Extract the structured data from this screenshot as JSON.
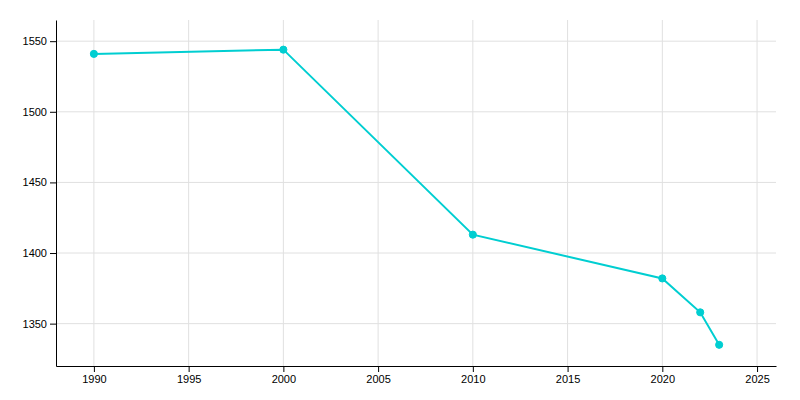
{
  "chart_data": {
    "type": "line",
    "x": [
      1990,
      2000,
      2010,
      2020,
      2022,
      2023
    ],
    "values": [
      1541,
      1544,
      1413,
      1382,
      1358,
      1335
    ],
    "color": "#00CED1",
    "marker": "circle",
    "xlim": [
      1988,
      2026
    ],
    "ylim": [
      1320,
      1565
    ],
    "xticks": [
      1990,
      1995,
      2000,
      2005,
      2010,
      2015,
      2020,
      2025
    ],
    "yticks": [
      1350,
      1400,
      1450,
      1500,
      1550
    ],
    "grid": true
  }
}
